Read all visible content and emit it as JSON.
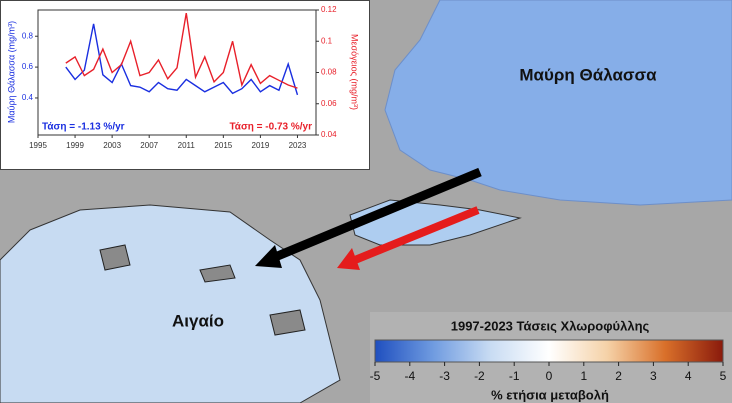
{
  "map": {
    "labels": [
      "Μαύρη Θάλασσα",
      "Αιγαίο"
    ],
    "colorbar": {
      "title": "1997-2023 Τάσεις Χλωροφύλλης",
      "ticks": [
        -5,
        -4,
        -3,
        -2,
        -1,
        0,
        1,
        2,
        3,
        4,
        5
      ],
      "range": [
        -5,
        5
      ],
      "label": "% ετήσια μεταβολή",
      "colors": [
        "#1f4fbf",
        "#6f9be0",
        "#c9dcf3",
        "#ffffff",
        "#f5d2a8",
        "#d9702a",
        "#8a1a0c"
      ]
    }
  },
  "chart_data": {
    "type": "line",
    "x": [
      1998,
      1999,
      2000,
      2001,
      2002,
      2003,
      2004,
      2005,
      2006,
      2007,
      2008,
      2009,
      2010,
      2011,
      2012,
      2013,
      2014,
      2015,
      2016,
      2017,
      2018,
      2019,
      2020,
      2021,
      2022,
      2023
    ],
    "xlim": [
      1995,
      2025
    ],
    "xticks": [
      1995,
      1999,
      2003,
      2007,
      2011,
      2015,
      2019,
      2023
    ],
    "ylim": [
      0.16,
      0.97
    ],
    "yticks": [
      0.4,
      0.6,
      0.8
    ],
    "y2lim": [
      0.04,
      0.12
    ],
    "y2ticks": [
      0.04,
      0.06,
      0.08,
      0.1,
      0.12
    ],
    "ylabel": "Μαύρη Θάλασσα (mg/m³)",
    "y2label": "Μεσόγειος (mg/m³)",
    "series": [
      {
        "name": "Μαύρη Θάλασσα",
        "color": "#1a2fe0",
        "values": [
          0.6,
          0.52,
          0.58,
          0.88,
          0.55,
          0.5,
          0.62,
          0.48,
          0.47,
          0.44,
          0.5,
          0.46,
          0.45,
          0.52,
          0.48,
          0.44,
          0.47,
          0.5,
          0.43,
          0.46,
          0.52,
          0.44,
          0.48,
          0.45,
          0.62,
          0.42
        ]
      },
      {
        "name": "Μεσόγειος",
        "color": "#e8202a",
        "axis": "y2",
        "values": [
          0.086,
          0.09,
          0.078,
          0.082,
          0.095,
          0.08,
          0.085,
          0.1,
          0.078,
          0.08,
          0.088,
          0.076,
          0.083,
          0.118,
          0.077,
          0.09,
          0.074,
          0.08,
          0.1,
          0.072,
          0.085,
          0.073,
          0.078,
          0.075,
          0.072,
          0.07
        ]
      }
    ],
    "annotations": [
      "Τάση = -1.13 %/yr",
      "Τάση = -0.73 %/yr"
    ]
  }
}
